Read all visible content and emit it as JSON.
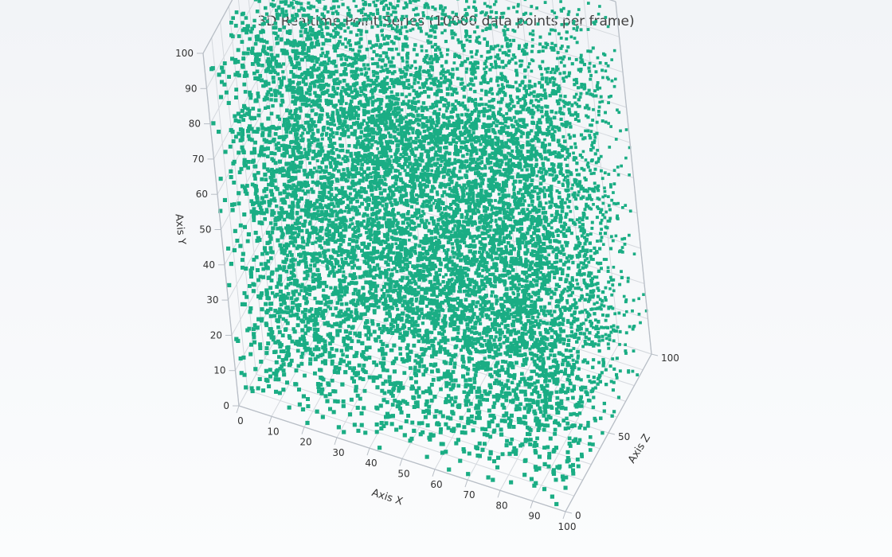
{
  "chart_data": {
    "type": "scatter",
    "title": "3D Realtime Point Series (10000 data points per frame)",
    "xlabel": "Axis X",
    "ylabel": "Axis Y",
    "zlabel": "Axis Z",
    "xlim": [
      0,
      100
    ],
    "ylim": [
      0,
      100
    ],
    "zlim": [
      0,
      100
    ],
    "x_ticks": [
      "0",
      "10",
      "20",
      "30",
      "40",
      "50",
      "60",
      "70",
      "80",
      "90",
      "100"
    ],
    "y_ticks": [
      "0",
      "10",
      "20",
      "30",
      "40",
      "50",
      "60",
      "70",
      "80",
      "90",
      "100"
    ],
    "z_ticks": [
      "0",
      "50",
      "100"
    ],
    "point_count": 10000,
    "distribution": "uniform random in [0,100] on each axis",
    "point_color": "#1aad84",
    "grid": true,
    "grid_color": "#d5d9de",
    "axis_line_color": "#b8bec6"
  }
}
